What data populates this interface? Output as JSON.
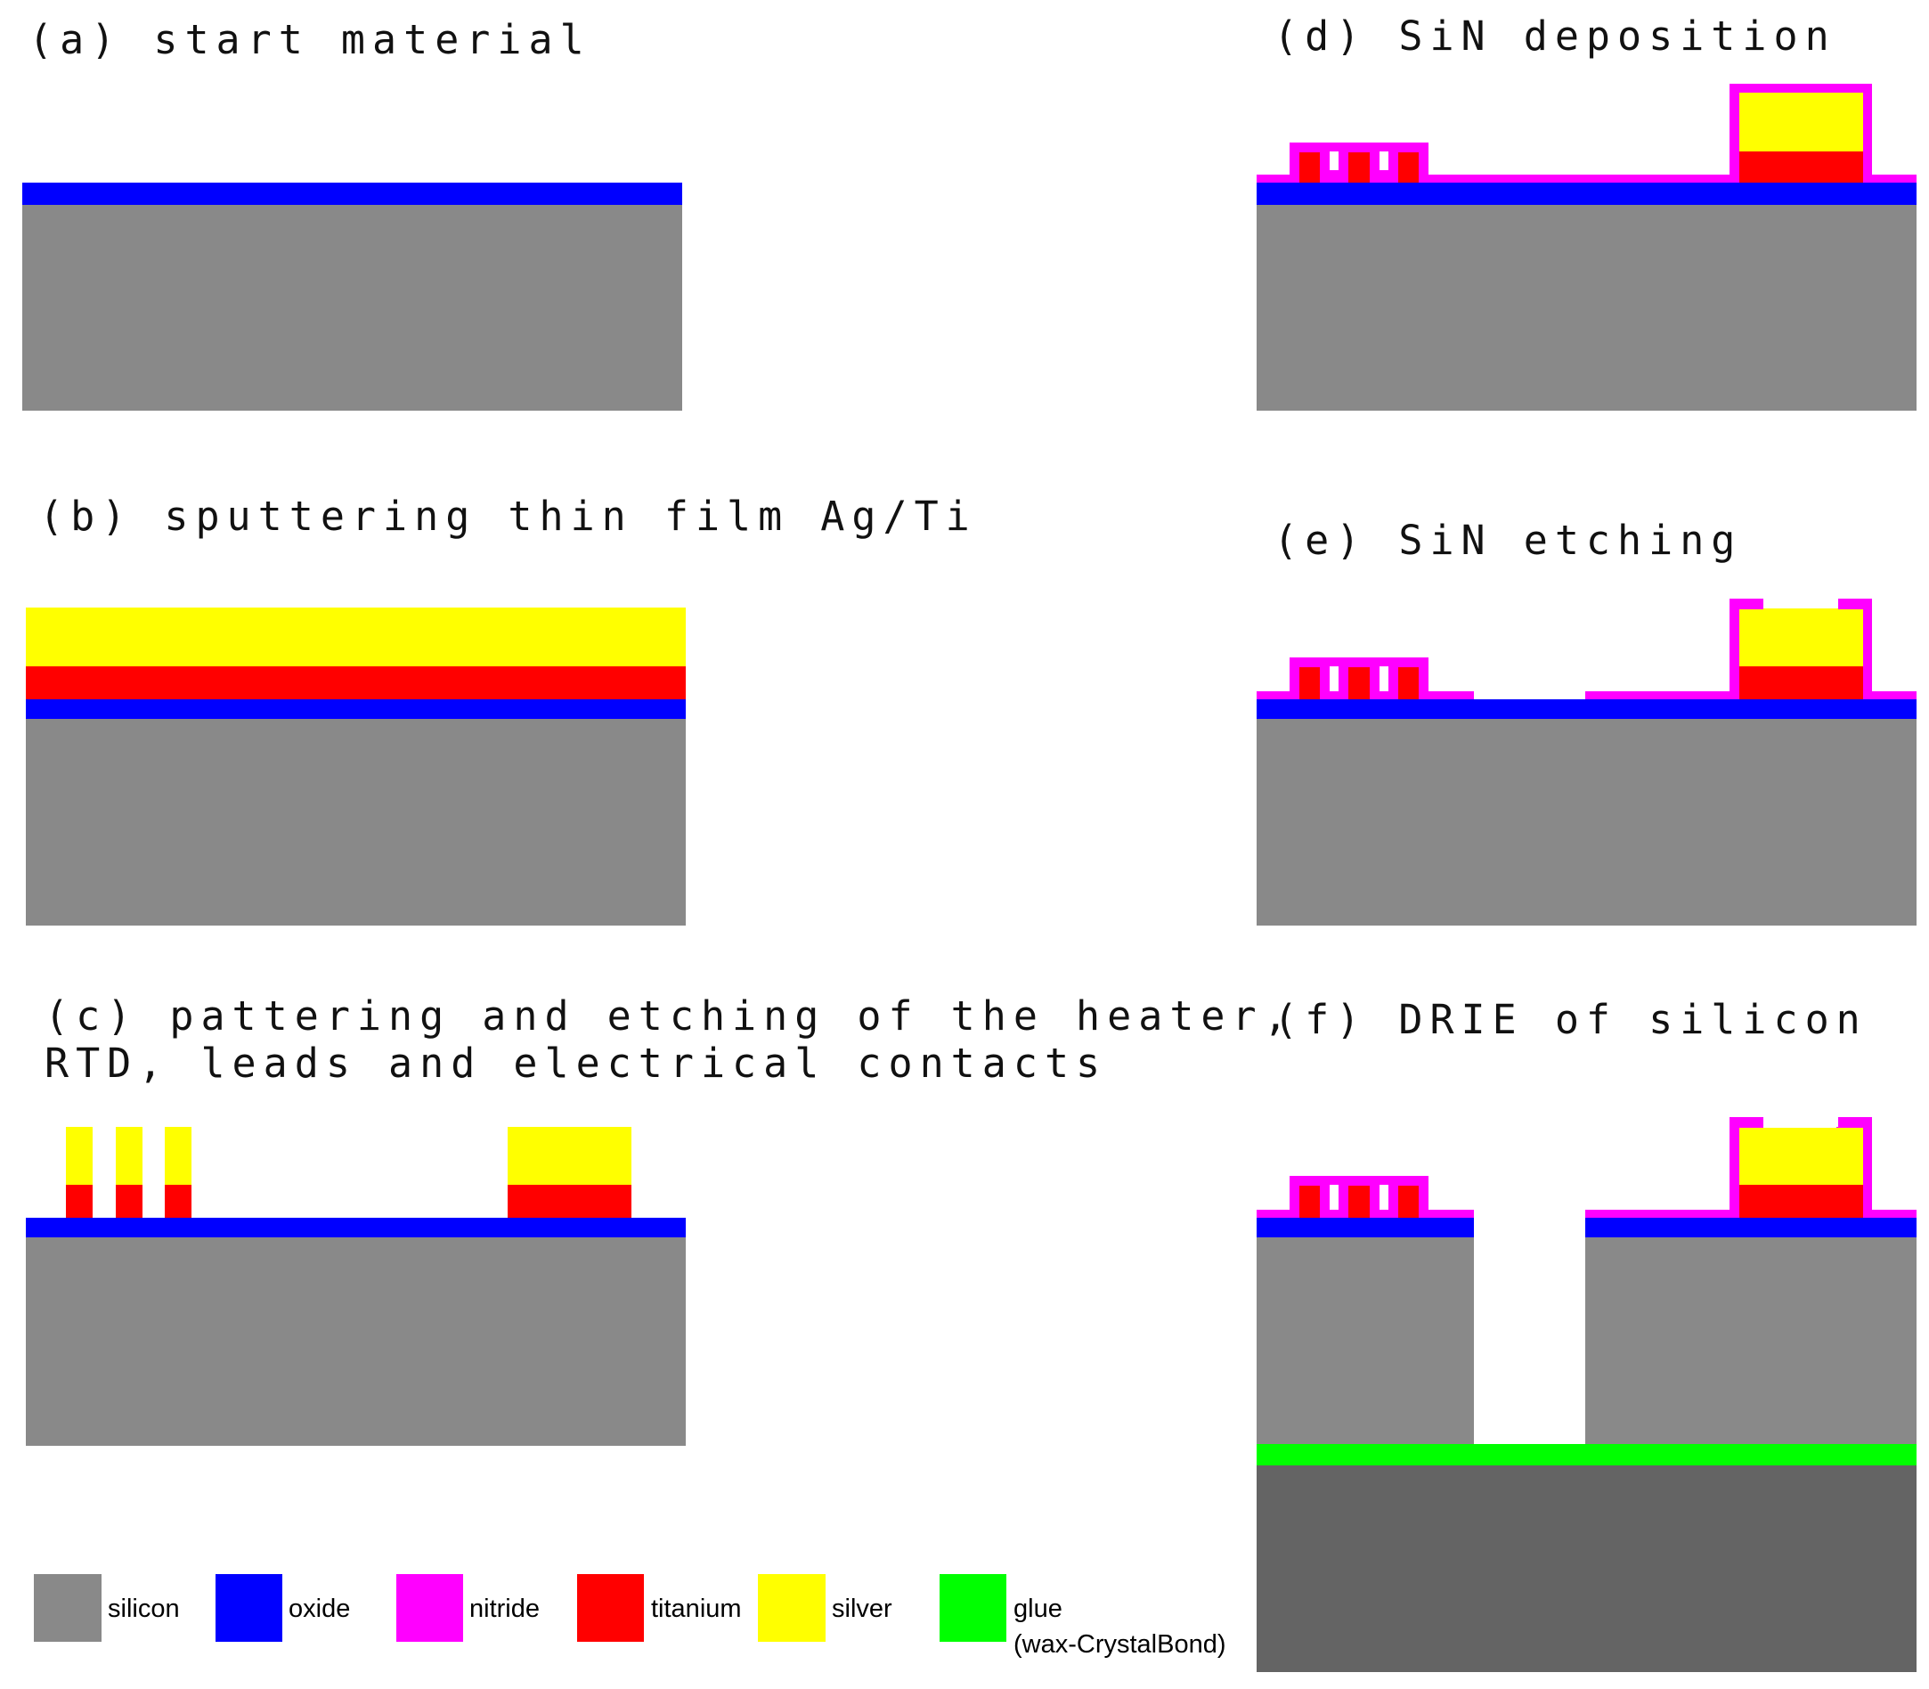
{
  "panels": {
    "a": {
      "title": "(a) start material"
    },
    "b": {
      "title": "(b) sputtering thin film Ag/Ti"
    },
    "c": {
      "title_line1": "(c) pattering and etching of the heater,",
      "title_line2": "RTD, leads and electrical contacts"
    },
    "d": {
      "title": "(d) SiN deposition"
    },
    "e": {
      "title": "(e) SiN etching"
    },
    "f": {
      "title": "(f) DRIE of silicon"
    }
  },
  "colors": {
    "silicon": "#898989",
    "oxide": "#0000ff",
    "nitride": "#ff00ff",
    "titanium": "#ff0000",
    "silver": "#ffff00",
    "glue": "#00ff00",
    "substrate": "#646464"
  },
  "legend": [
    {
      "key": "silicon",
      "label": "silicon"
    },
    {
      "key": "oxide",
      "label": "oxide"
    },
    {
      "key": "nitride",
      "label": "nitride"
    },
    {
      "key": "titanium",
      "label": "titanium"
    },
    {
      "key": "silver",
      "label": "silver"
    },
    {
      "key": "glue",
      "label": "glue",
      "label2": "(wax-CrystalBond)"
    }
  ]
}
